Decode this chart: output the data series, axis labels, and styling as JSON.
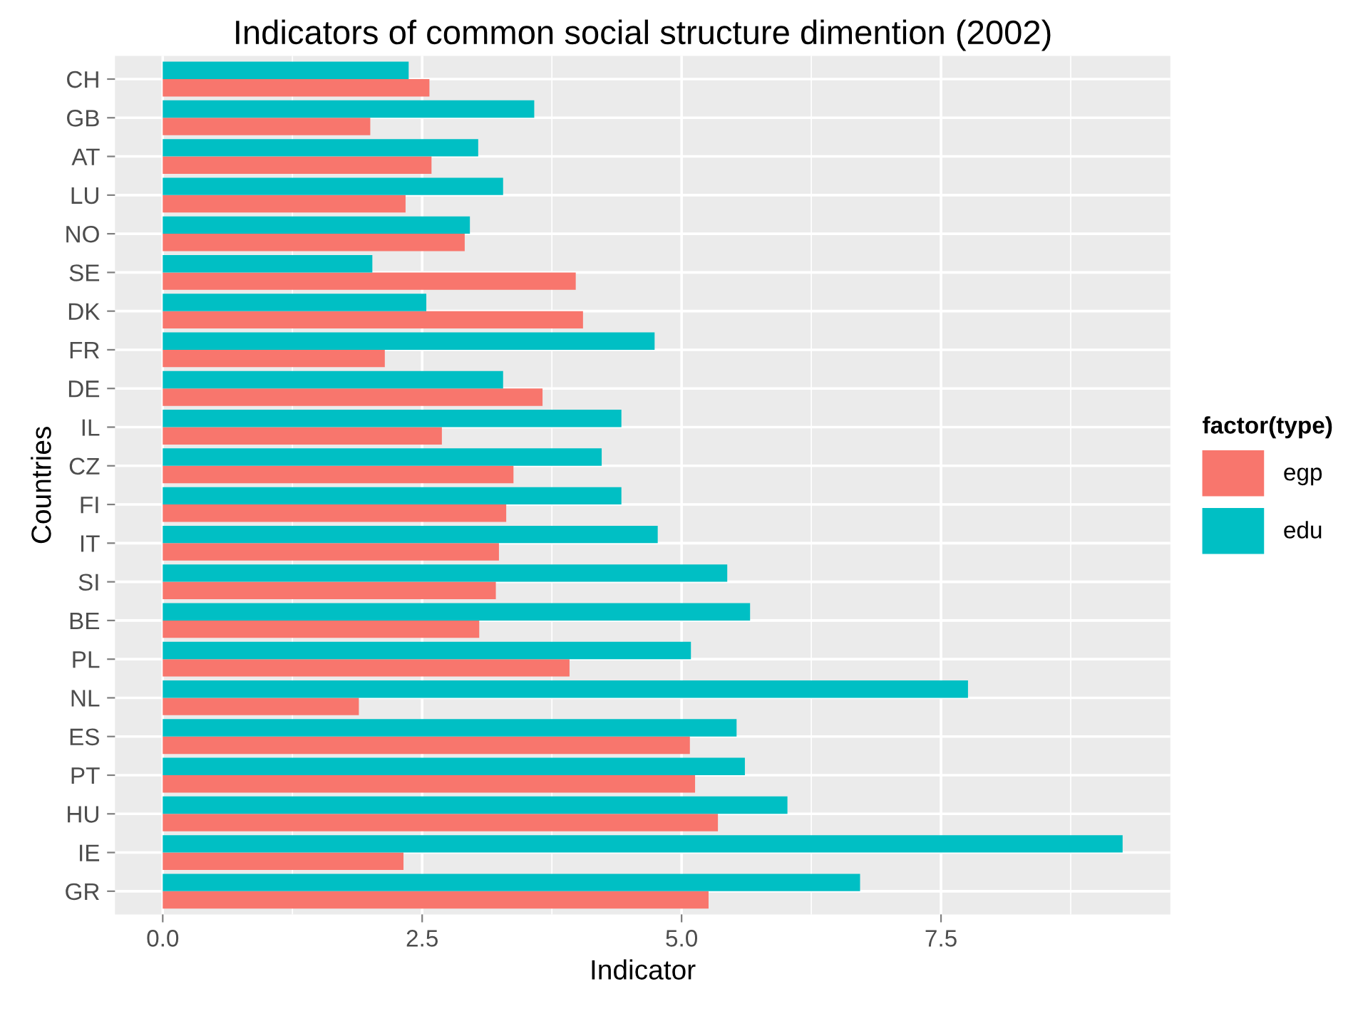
{
  "chart_data": {
    "type": "bar",
    "orientation": "horizontal",
    "title": "Indicators of common social structure dimention (2002)",
    "xlabel": "Indicator",
    "ylabel": "Countries",
    "legend_title": "factor(type)",
    "categories": [
      "CH",
      "GB",
      "AT",
      "LU",
      "NO",
      "SE",
      "DK",
      "FR",
      "DE",
      "IL",
      "CZ",
      "FI",
      "IT",
      "SI",
      "BE",
      "PL",
      "NL",
      "ES",
      "PT",
      "HU",
      "IE",
      "GR"
    ],
    "series": [
      {
        "name": "egp",
        "color": "#f8766d",
        "values": [
          2.57,
          2.0,
          2.59,
          2.34,
          2.91,
          3.98,
          4.05,
          2.14,
          3.66,
          2.69,
          3.38,
          3.31,
          3.24,
          3.21,
          3.05,
          3.92,
          1.89,
          5.08,
          5.13,
          5.35,
          2.32,
          5.26
        ]
      },
      {
        "name": "edu",
        "color": "#00bfc4",
        "values": [
          2.37,
          3.58,
          3.04,
          3.28,
          2.96,
          2.02,
          2.54,
          4.74,
          3.28,
          4.42,
          4.23,
          4.42,
          4.77,
          5.44,
          5.66,
          5.09,
          7.76,
          5.53,
          5.61,
          6.02,
          9.25,
          6.72
        ]
      }
    ],
    "xlim": [
      -0.46,
      9.71
    ],
    "xticks": [
      {
        "value": 0,
        "label": "0.0"
      },
      2.5,
      {
        "value": 5,
        "label": "5.0"
      },
      7.5
    ],
    "grid": true,
    "legend": "right"
  }
}
